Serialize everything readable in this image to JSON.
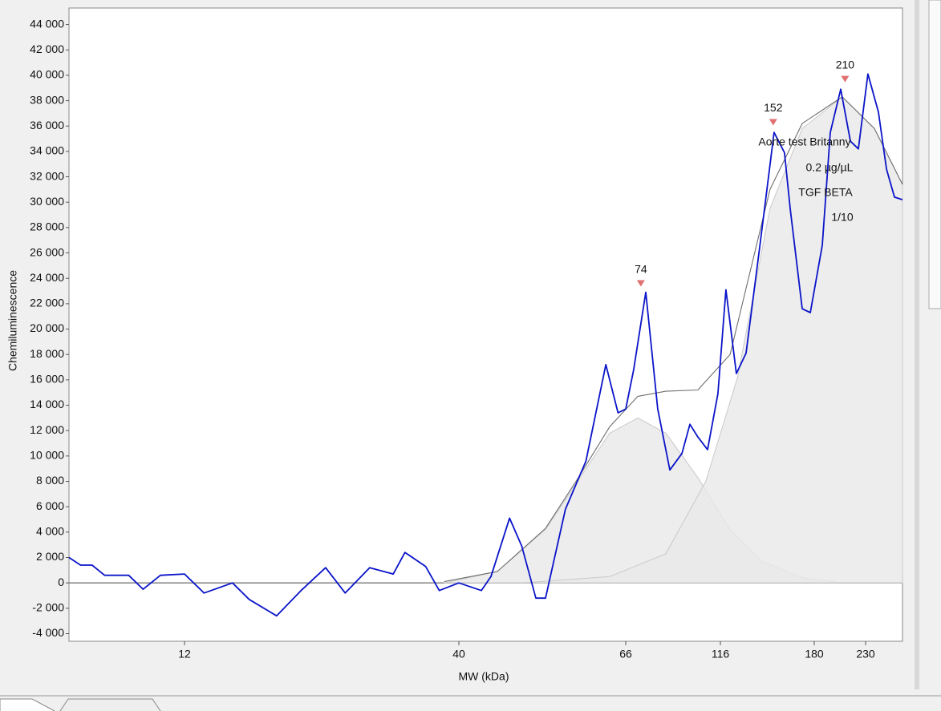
{
  "chart_data": {
    "type": "line",
    "xlabel": "MW (kDa)",
    "ylabel": "Chemiluminescence",
    "xlim": [
      0,
      266
    ],
    "xticks": [
      12,
      40,
      66,
      116,
      180,
      230
    ],
    "ylim": [
      -4600,
      45300
    ],
    "yticks": [
      {
        "value": 44000,
        "label": "44 000"
      },
      {
        "value": 42000,
        "label": "42 000"
      },
      {
        "value": 40000,
        "label": "40 000"
      },
      {
        "value": 38000,
        "label": "38 000"
      },
      {
        "value": 36000,
        "label": "36 000"
      },
      {
        "value": 34000,
        "label": "34 000"
      },
      {
        "value": 32000,
        "label": "32 000"
      },
      {
        "value": 30000,
        "label": "30 000"
      },
      {
        "value": 28000,
        "label": "28 000"
      },
      {
        "value": 26000,
        "label": "26 000"
      },
      {
        "value": 24000,
        "label": "24 000"
      },
      {
        "value": 22000,
        "label": "22 000"
      },
      {
        "value": 20000,
        "label": "20 000"
      },
      {
        "value": 18000,
        "label": "18 000"
      },
      {
        "value": 16000,
        "label": "16 000"
      },
      {
        "value": 14000,
        "label": "14 000"
      },
      {
        "value": 12000,
        "label": "12 000"
      },
      {
        "value": 10000,
        "label": "10 000"
      },
      {
        "value": 8000,
        "label": "8 000"
      },
      {
        "value": 6000,
        "label": "6 000"
      },
      {
        "value": 4000,
        "label": "4 000"
      },
      {
        "value": 2000,
        "label": "2 000"
      },
      {
        "value": 0,
        "label": "0"
      },
      {
        "value": -2000,
        "label": "-2 000"
      },
      {
        "value": -4000,
        "label": "-4 000"
      }
    ],
    "series": [
      {
        "color": "#c9c9c9",
        "fill": "#e9e9e9",
        "x": [
          38.5,
          46,
          53.5,
          58.5,
          63.5,
          72.4,
          87.2,
          104.1,
          122.6,
          144.5,
          171.8,
          199.5
        ],
        "values": [
          0,
          900,
          4200,
          8000,
          11800,
          13000,
          11800,
          8300,
          4200,
          1700,
          400,
          100
        ]
      },
      {
        "color": "#c9c9c9",
        "fill": "#e9e9e9",
        "x": [
          49.8,
          63.5,
          87.2,
          108.3,
          127.7,
          149.8,
          171.8,
          207.3,
          238.6,
          266
        ],
        "values": [
          0,
          500,
          2300,
          8000,
          16200,
          29500,
          35800,
          38300,
          35800,
          31400
        ]
      },
      {
        "color": "#6e6e6e",
        "x": [
          38.5,
          46,
          53.5,
          58.5,
          63.5,
          72.4,
          87.2,
          104.1,
          122.6,
          149.8,
          171.8,
          207.3,
          238.6,
          266
        ],
        "values": [
          100,
          900,
          4300,
          8200,
          12300,
          14700,
          15100,
          15200,
          18000,
          31000,
          36200,
          38300,
          35800,
          31400
        ]
      },
      {
        "color": "#0a14c8",
        "x": [
          0,
          1.2,
          2.4,
          3.7,
          6.2,
          7.7,
          9.5,
          12,
          14,
          16.9,
          18.6,
          21.4,
          23.9,
          26.4,
          28.4,
          30.9,
          33.3,
          34.5,
          36.6,
          38,
          40,
          43.5,
          45,
          47.9,
          49.8,
          52,
          53.5,
          56.6,
          59.8,
          62.9,
          64.8,
          66,
          70.2,
          76.6,
          82.9,
          89.3,
          95.7,
          99.9,
          104.1,
          109.2,
          114.7,
          119.8,
          126.9,
          133.5,
          143.3,
          152.6,
          159.7,
          163.6,
          171.8,
          177.3,
          187.8,
          195.6,
          205.8,
          215.2,
          223,
          232.3,
          242.5,
          250.4,
          258.2,
          266
        ],
        "values": [
          2000,
          1400,
          1400,
          600,
          600,
          -500,
          600,
          700,
          -800,
          0,
          -1300,
          -2600,
          -600,
          1200,
          -800,
          1200,
          700,
          2400,
          1300,
          -600,
          0,
          -600,
          500,
          5100,
          2900,
          -1200,
          -1200,
          5800,
          9600,
          17200,
          13400,
          13700,
          16800,
          22900,
          13700,
          8900,
          10200,
          12500,
          11500,
          10500,
          14900,
          23100,
          16500,
          18100,
          26900,
          35500,
          33900,
          29500,
          21600,
          21300,
          26600,
          35500,
          38900,
          34800,
          34200,
          40100,
          37100,
          32600,
          30400,
          30200
        ]
      }
    ],
    "markers": [
      {
        "x": 74,
        "y": 23600
      },
      {
        "x": 152,
        "y": 36300
      },
      {
        "x": 210,
        "y": 39700
      }
    ],
    "annotations": [
      "Aorte test Britanny",
      "0.2 µg/µL",
      "TGF BETA",
      "1/10"
    ]
  }
}
